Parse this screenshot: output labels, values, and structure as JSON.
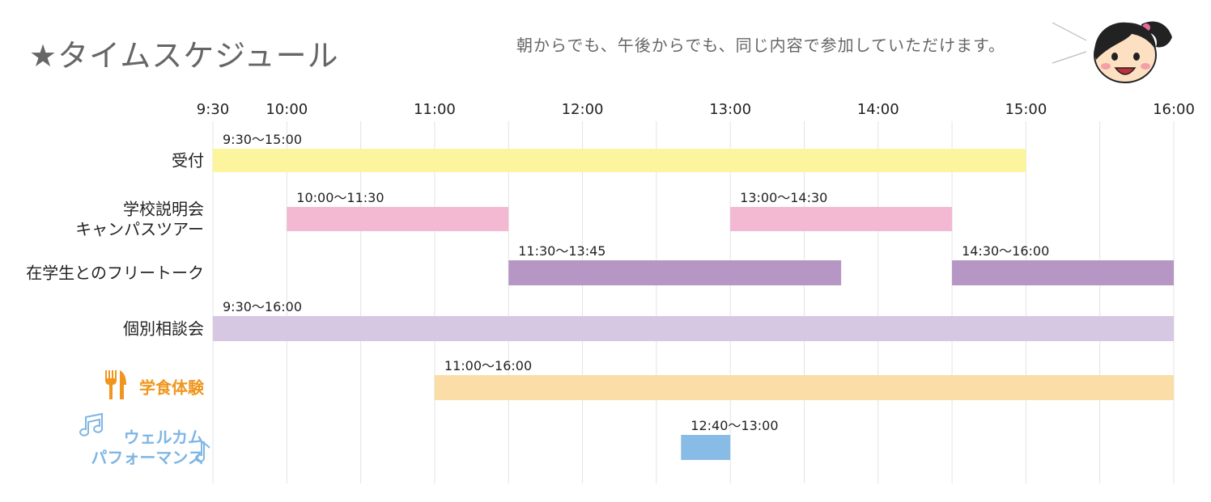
{
  "header": {
    "title": "★タイムスケジュール",
    "speech": "朝からでも、午後からでも、同じ内容で参加していただけます。",
    "mascot_icon": "smiling-girl-face-icon"
  },
  "colors": {
    "grid": "#e3e3e3",
    "text": "#222222",
    "title": "#666666",
    "orange_label": "#f0961e",
    "blue_label": "#7fb6e4"
  },
  "chart_data": {
    "type": "gantt",
    "x_ticks": [
      "9:30",
      "10:00",
      "11:00",
      "12:00",
      "13:00",
      "14:00",
      "15:00",
      "16:00"
    ],
    "xlim": [
      "9:30",
      "16:00"
    ],
    "grid": true,
    "rows": [
      {
        "id": "reception",
        "label_lines": [
          "受付"
        ],
        "label_color": "#222222",
        "bars": [
          {
            "start": "9:30",
            "end": "15:00",
            "label": "9:30〜15:00",
            "color": "#fdf59e"
          }
        ]
      },
      {
        "id": "info-session",
        "label_lines": [
          "学校説明会",
          "キャンパスツアー"
        ],
        "label_color": "#222222",
        "bars": [
          {
            "start": "10:00",
            "end": "11:30",
            "label": "10:00〜11:30",
            "color": "#f3b8d2"
          },
          {
            "start": "13:00",
            "end": "14:30",
            "label": "13:00〜14:30",
            "color": "#f3b8d2"
          }
        ]
      },
      {
        "id": "free-talk",
        "label_lines": [
          "在学生とのフリートーク"
        ],
        "label_color": "#222222",
        "bars": [
          {
            "start": "11:30",
            "end": "13:45",
            "label": "11:30〜13:45",
            "color": "#b696c4"
          },
          {
            "start": "14:30",
            "end": "16:00",
            "label": "14:30〜16:00",
            "color": "#b696c4"
          }
        ]
      },
      {
        "id": "consultation",
        "label_lines": [
          "個別相談会"
        ],
        "label_color": "#222222",
        "bars": [
          {
            "start": "9:30",
            "end": "16:00",
            "label": "9:30〜16:00",
            "color": "#d6c7e2"
          }
        ]
      },
      {
        "id": "cafeteria",
        "label_lines": [
          "学食体験"
        ],
        "label_color": "#f0961e",
        "icon": "fork-knife-icon",
        "bars": [
          {
            "start": "11:00",
            "end": "16:00",
            "label": "11:00〜16:00",
            "color": "#fadda7"
          }
        ]
      },
      {
        "id": "welcome-performance",
        "label_lines": [
          "ウェルカム",
          "パフォーマンス"
        ],
        "label_color": "#7fb6e4",
        "icon": "music-note-icon",
        "bars": [
          {
            "start": "12:40",
            "end": "13:00",
            "label": "12:40〜13:00",
            "color": "#88bbe6"
          }
        ]
      }
    ]
  }
}
